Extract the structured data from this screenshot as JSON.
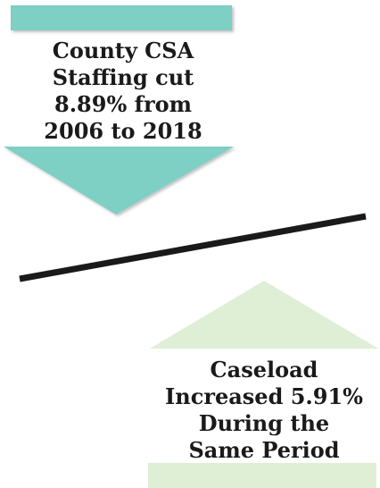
{
  "top_block": {
    "color": "#7ecfc4",
    "direction": "down",
    "caption_lines": [
      "County CSA",
      "Staffing cut",
      "8.89% from",
      "2006 to 2018"
    ]
  },
  "divider": {
    "color": "#1a1a1a"
  },
  "bottom_block": {
    "color": "#deefd6",
    "direction": "up",
    "caption_lines": [
      "Caseload",
      "Increased 5.91%",
      "During the",
      "Same Period"
    ]
  }
}
